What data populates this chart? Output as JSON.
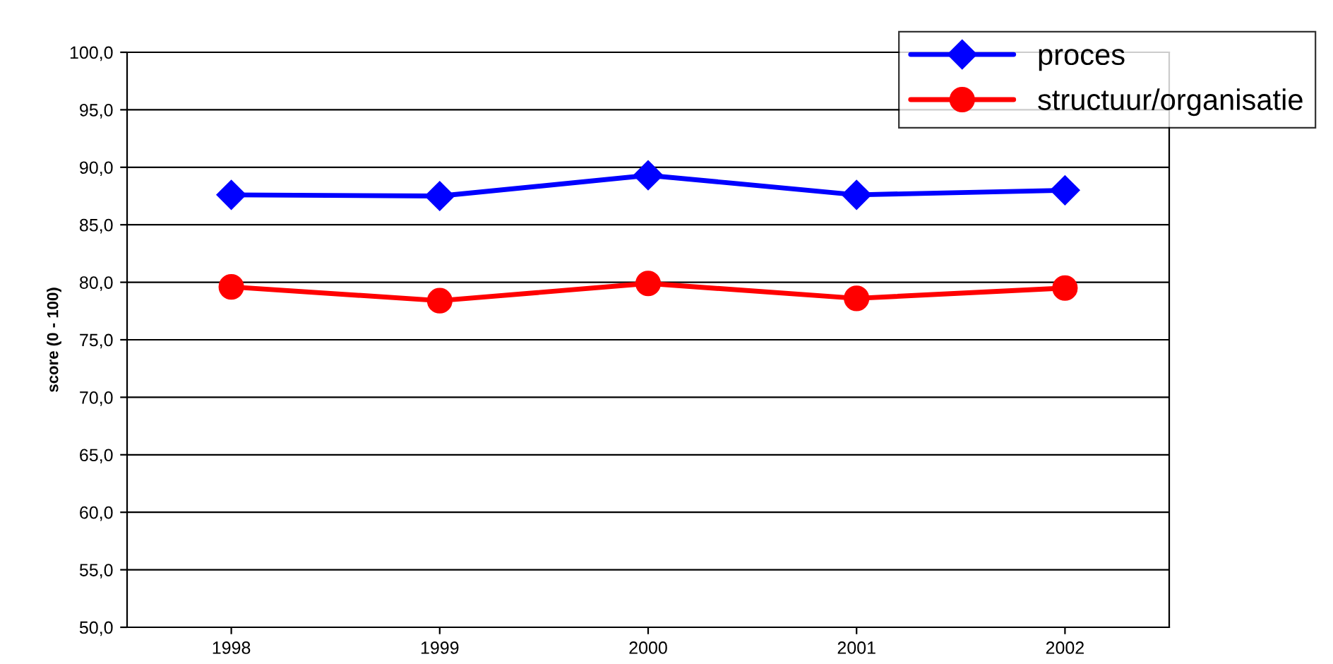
{
  "chart_data": {
    "type": "line",
    "ylabel": "score (0 - 100)",
    "categories": [
      "1998",
      "1999",
      "2000",
      "2001",
      "2002"
    ],
    "series": [
      {
        "name": "proces",
        "color": "#0000ff",
        "marker": "diamond",
        "values": [
          87.6,
          87.5,
          89.3,
          87.6,
          88.0
        ]
      },
      {
        "name": "structuur/organisatie",
        "color": "#ff0000",
        "marker": "circle",
        "values": [
          79.6,
          78.4,
          79.9,
          78.6,
          79.5
        ]
      }
    ],
    "ylim": [
      50,
      100
    ],
    "yticks": [
      {
        "value": 50,
        "label": "50,0"
      },
      {
        "value": 55,
        "label": "55,0"
      },
      {
        "value": 60,
        "label": "60,0"
      },
      {
        "value": 65,
        "label": "65,0"
      },
      {
        "value": 70,
        "label": "70,0"
      },
      {
        "value": 75,
        "label": "75,0"
      },
      {
        "value": 80,
        "label": "80,0"
      },
      {
        "value": 85,
        "label": "85,0"
      },
      {
        "value": 90,
        "label": "90,0"
      },
      {
        "value": 95,
        "label": "95,0"
      },
      {
        "value": 100,
        "label": "100,0"
      }
    ],
    "grid": "y",
    "legend": "top right",
    "line_style": "solid"
  }
}
